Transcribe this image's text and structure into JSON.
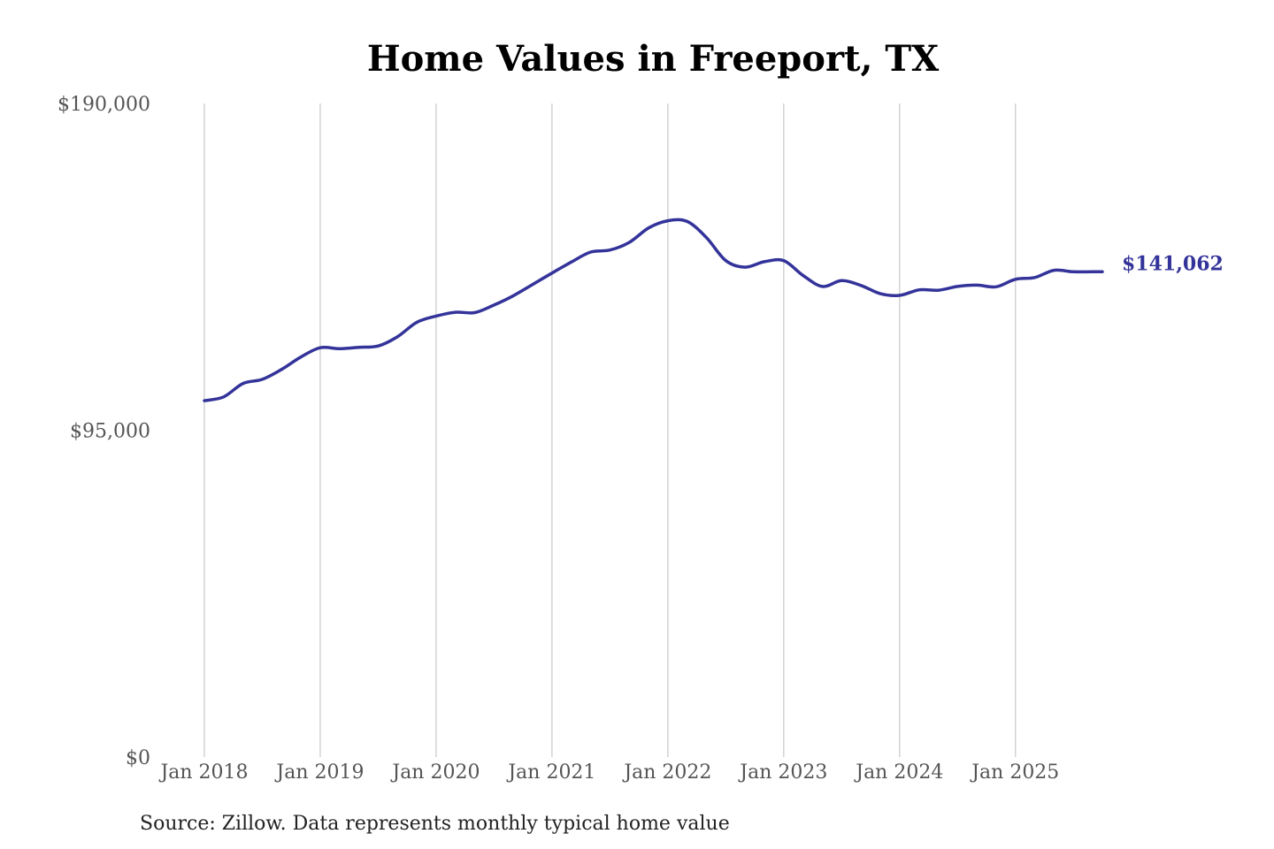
{
  "chart_data": {
    "type": "line",
    "title": "Home Values in Freeport, TX",
    "source_note": "Source: Zillow. Data represents monthly typical home value",
    "xlabel": "",
    "ylabel": "",
    "ylim": [
      0,
      190000
    ],
    "y_ticks": [
      0,
      95000,
      190000
    ],
    "y_tick_labels": [
      "$0",
      "$95,000",
      "$190,000"
    ],
    "x_ticks": [
      "Jan 2018",
      "Jan 2019",
      "Jan 2020",
      "Jan 2021",
      "Jan 2022",
      "Jan 2023",
      "Jan 2024",
      "Jan 2025"
    ],
    "x_range": [
      "2018-01",
      "2025-10"
    ],
    "grid": "vertical lines at each January",
    "legend": "none",
    "line_color": "#33339a",
    "end_label": "$141,062",
    "series": [
      {
        "x": [
          "2018-01",
          "2018-03",
          "2018-05",
          "2018-07",
          "2018-09",
          "2018-11",
          "2019-01",
          "2019-03",
          "2019-05",
          "2019-07",
          "2019-09",
          "2019-11",
          "2020-01",
          "2020-03",
          "2020-05",
          "2020-07",
          "2020-09",
          "2020-11",
          "2021-01",
          "2021-03",
          "2021-05",
          "2021-07",
          "2021-09",
          "2021-11",
          "2022-01",
          "2022-03",
          "2022-05",
          "2022-07",
          "2022-09",
          "2022-11",
          "2023-01",
          "2023-03",
          "2023-05",
          "2023-07",
          "2023-09",
          "2023-11",
          "2024-01",
          "2024-03",
          "2024-05",
          "2024-07",
          "2024-09",
          "2024-11",
          "2025-01",
          "2025-03",
          "2025-05",
          "2025-07",
          "2025-09",
          "2025-10"
        ],
        "y": [
          103600,
          104700,
          108600,
          109800,
          112700,
          116300,
          119000,
          118700,
          119100,
          119500,
          122200,
          126400,
          128200,
          129300,
          129200,
          131400,
          134100,
          137400,
          140700,
          143900,
          146800,
          147400,
          149600,
          153800,
          155900,
          155700,
          151000,
          144300,
          142400,
          144000,
          144300,
          140000,
          136800,
          138500,
          137100,
          134700,
          134200,
          135800,
          135700,
          136800,
          137200,
          136700,
          138900,
          139400,
          141500,
          141062,
          141062,
          141062
        ]
      }
    ]
  }
}
